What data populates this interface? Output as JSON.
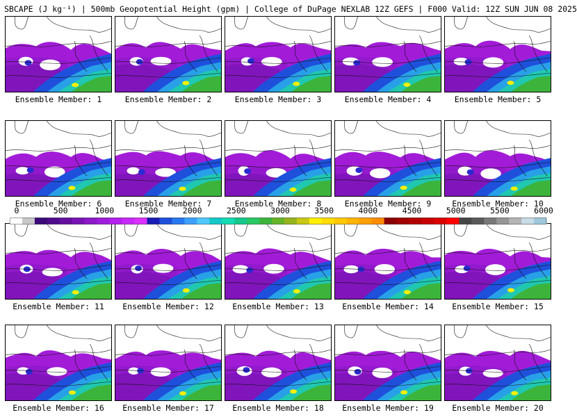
{
  "header": {
    "title": "SBCAPE (J kg⁻¹) | 500mb Geopotential Height (gpm) | College of DuPage NEXLAB 12Z GEFS | F000 Valid: 12Z SUN JUN 08 2025"
  },
  "member_prefix": "Ensemble Member: ",
  "members": [
    "1",
    "2",
    "3",
    "4",
    "5",
    "6",
    "7",
    "8",
    "9",
    "10",
    "11",
    "12",
    "13",
    "14",
    "15",
    "16",
    "17",
    "18",
    "19",
    "20"
  ],
  "colorbar": {
    "ticks": [
      "0",
      "500",
      "1000",
      "1500",
      "2000",
      "2500",
      "3000",
      "3500",
      "4000",
      "4500",
      "5000",
      "5500",
      "6000"
    ],
    "colors": [
      "#ffffff",
      "#c8c8c8",
      "#3c0a78",
      "#500c8c",
      "#6410a0",
      "#7814b4",
      "#8c18c8",
      "#a01cdc",
      "#b420f0",
      "#c828f8",
      "#dc30ff",
      "#1a1ab4",
      "#1e50dc",
      "#2878f0",
      "#3ca0ff",
      "#50c8ff",
      "#14c8c8",
      "#14dcb4",
      "#14c88c",
      "#28c864",
      "#3cb43c",
      "#64b428",
      "#96b41e",
      "#c8c814",
      "#fff000",
      "#ffdc00",
      "#ffc800",
      "#ffb400",
      "#ffa000",
      "#ff8c00",
      "#8b0000",
      "#a00000",
      "#b40000",
      "#c80000",
      "#dc0000",
      "#ff0000",
      "#464646",
      "#5a5a5a",
      "#787878",
      "#969696",
      "#b4b4b4",
      "#c8dce6",
      "#a0c8dc"
    ]
  }
}
